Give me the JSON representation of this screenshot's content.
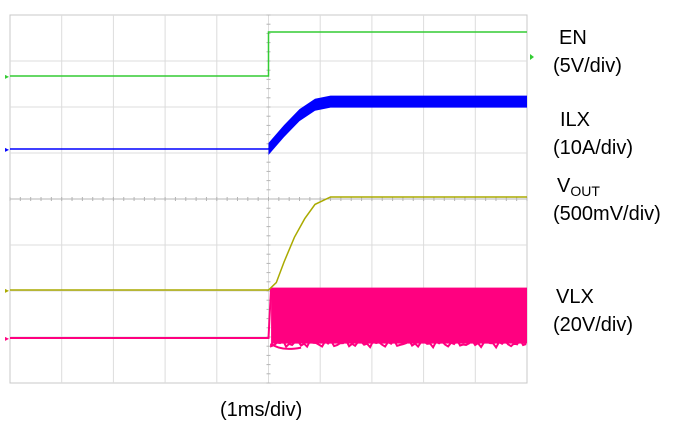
{
  "chart_data": {
    "type": "line",
    "title": "",
    "xlabel": "(1ms/div)",
    "ylabel": "",
    "x_unit": "ms",
    "x_divisions": 10,
    "y_divisions": 8,
    "grid": true,
    "legend": "right",
    "series": [
      {
        "name": "EN",
        "scale": "(5V/div)",
        "color": "#33cc33",
        "marker": "right-arrow",
        "x": [
          0,
          5.0,
          5.0,
          10.0
        ],
        "y": [
          0,
          0,
          5.0,
          5.0
        ]
      },
      {
        "name": "ILX",
        "scale": "(10A/div)",
        "color": "#0000ff",
        "x": [
          0,
          5.0,
          5.3,
          5.6,
          5.9,
          6.2,
          10.0
        ],
        "y": [
          0,
          0,
          5.6,
          10.6,
          13.8,
          14.8,
          14.8
        ],
        "ripple": 3.0
      },
      {
        "name": "V",
        "name_sub": "OUT",
        "scale": "(500mV/div)",
        "color": "#aaaa00",
        "x": [
          0,
          5.0,
          5.15,
          5.3,
          5.5,
          5.7,
          5.9,
          6.2,
          10.0
        ],
        "y": [
          0,
          0,
          0.12,
          0.45,
          0.85,
          1.15,
          1.38,
          1.5,
          1.5
        ]
      },
      {
        "name": "VLX",
        "scale": "(20V/div)",
        "color": "#ff0080",
        "x": [
          0,
          5.0,
          5.05,
          10.0
        ],
        "y": [
          0,
          0,
          36,
          36
        ],
        "switching_band": [
          -4,
          36
        ]
      }
    ]
  }
}
